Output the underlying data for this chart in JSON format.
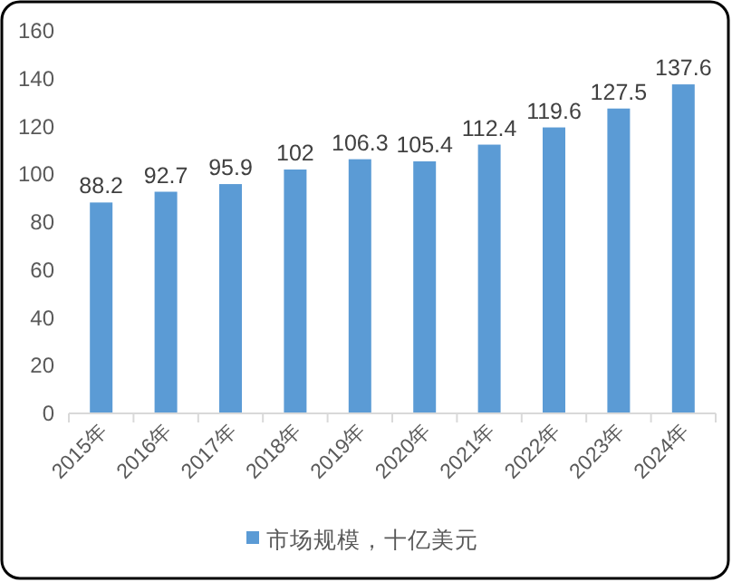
{
  "chart_data": {
    "type": "bar",
    "categories": [
      "2015年",
      "2016年",
      "2017年",
      "2018年",
      "2019年",
      "2020年",
      "2021年",
      "2022年",
      "2023年",
      "2024年"
    ],
    "series": [
      {
        "name": "市场规模，十亿美元",
        "color": "#5b9bd5",
        "values": [
          88.2,
          92.7,
          95.9,
          102,
          106.3,
          105.4,
          112.4,
          119.6,
          127.5,
          137.6
        ]
      }
    ],
    "ylim": [
      0,
      160
    ],
    "yticks": [
      0,
      20,
      40,
      60,
      80,
      100,
      120,
      140,
      160
    ],
    "data_labels": true,
    "legend": "bottom",
    "grid": false
  }
}
